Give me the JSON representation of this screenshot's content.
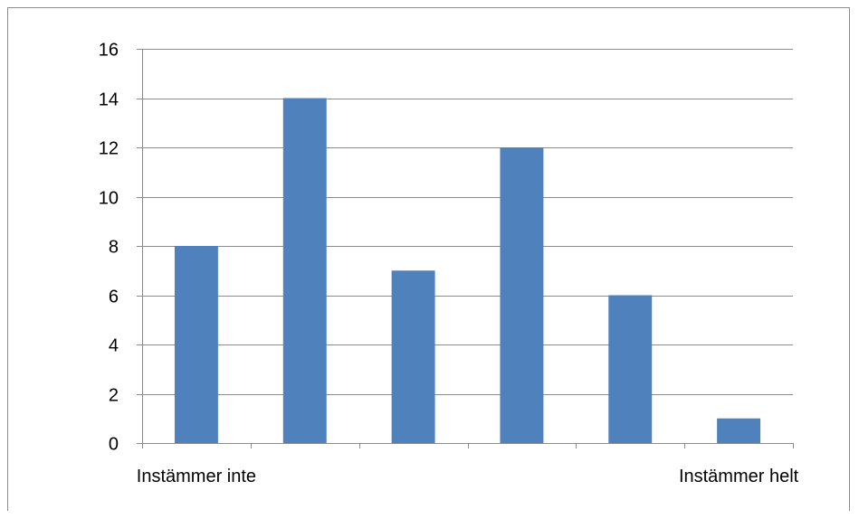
{
  "chart_data": {
    "type": "bar",
    "categories": [
      "Instämmer inte",
      "",
      "",
      "",
      "",
      "Instämmer helt"
    ],
    "values": [
      8,
      14,
      7,
      12,
      6,
      1
    ],
    "title": "",
    "xlabel": "",
    "ylabel": "",
    "ylim": [
      0,
      16
    ],
    "yticks": [
      "0",
      "2",
      "4",
      "6",
      "8",
      "10",
      "12",
      "14",
      "16"
    ],
    "grid": true,
    "legend": "none",
    "bar_color": "#4f81bd"
  }
}
